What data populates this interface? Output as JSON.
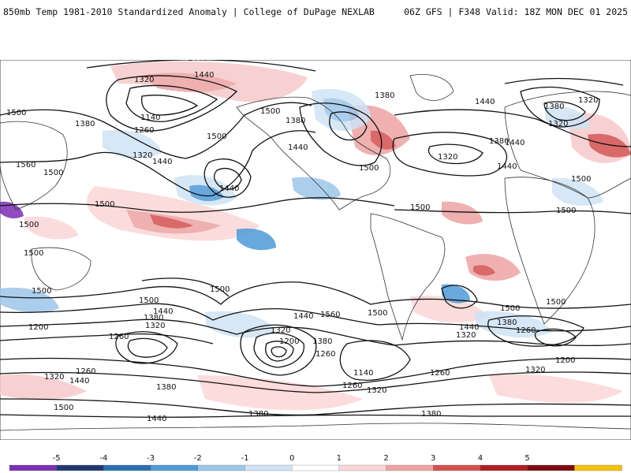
{
  "header": {
    "title_left": "850mb Temp 1981-2010 Standardized Anomaly | College of DuPage NEXLAB",
    "title_right": "06Z GFS | F348 Valid: 18Z MON DEC 01 2025"
  },
  "colorbar": {
    "ticks": [
      "-5",
      "-4",
      "-3",
      "-2",
      "-1",
      "0",
      "1",
      "2",
      "3",
      "4",
      "5"
    ],
    "colors": [
      "#7b2fb3",
      "#23386e",
      "#2b6fb0",
      "#4f9ad8",
      "#9ec6ea",
      "#cfe3f5",
      "#ffffff",
      "#fbd6d6",
      "#eda3a3",
      "#d4504f",
      "#b01e23",
      "#7a0b10",
      "#f2c10f"
    ]
  },
  "contour_labels": [
    "1440",
    "1440",
    "1320",
    "1500",
    "1380",
    "1260",
    "1140",
    "1320",
    "1440",
    "1500",
    "1560",
    "1500",
    "1440",
    "1500",
    "1500",
    "1500",
    "1380",
    "1500",
    "1440",
    "1500",
    "1500",
    "1380",
    "1320",
    "1380",
    "1440",
    "1320",
    "1440",
    "1380",
    "1320",
    "1500",
    "1440",
    "1500",
    "1500",
    "1500",
    "1560",
    "1440",
    "1500",
    "1500",
    "1380",
    "1440",
    "1320",
    "1260",
    "1200",
    "1320",
    "1380",
    "1260",
    "1140",
    "1260",
    "1320",
    "1260",
    "1500",
    "1500",
    "1380",
    "1320",
    "1260",
    "1200",
    "1320",
    "1380",
    "1440",
    "1200",
    "1260",
    "1320",
    "1440",
    "1500",
    "1440",
    "1380",
    "1380"
  ]
}
